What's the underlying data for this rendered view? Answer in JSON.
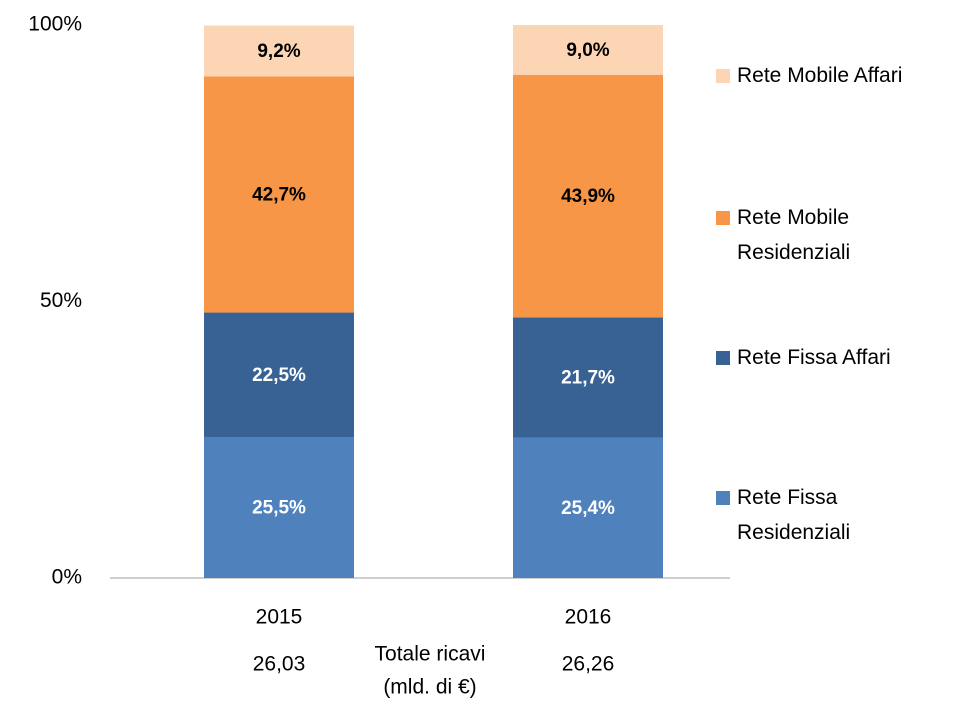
{
  "chart_data": {
    "type": "stacked_bar_percent",
    "categories": [
      "2015",
      "2016"
    ],
    "series": [
      {
        "name": "Rete Fissa Residenziali",
        "color": "#4f81bd",
        "label_color": "#ffffff",
        "values": [
          25.5,
          25.4
        ],
        "value_labels": [
          "25,5%",
          "25,4%"
        ]
      },
      {
        "name": "Rete Fissa Affari",
        "color": "#386294",
        "label_color": "#ffffff",
        "values": [
          22.5,
          21.7
        ],
        "value_labels": [
          "22,5%",
          "21,7%"
        ]
      },
      {
        "name": "Rete Mobile Residenziali",
        "color": "#f79646",
        "label_color": "#000000",
        "values": [
          42.7,
          43.9
        ],
        "value_labels": [
          "42,7%",
          "43,9%"
        ]
      },
      {
        "name": "Rete Mobile Affari",
        "color": "#fcd5b5",
        "label_color": "#000000",
        "values": [
          9.2,
          9.0
        ],
        "value_labels": [
          "9,2%",
          "9,0%"
        ]
      }
    ],
    "ylim": [
      0,
      100
    ],
    "yticks": [
      {
        "value": 0,
        "label": "0%"
      },
      {
        "value": 50,
        "label": "50%"
      },
      {
        "value": 100,
        "label": "100%"
      }
    ],
    "legend": "right",
    "totals": {
      "label_lines": [
        "Totale ricavi",
        "(mld. di €)"
      ],
      "values": [
        26.03,
        26.26
      ],
      "value_labels": [
        "26,03",
        "26,26"
      ]
    }
  }
}
